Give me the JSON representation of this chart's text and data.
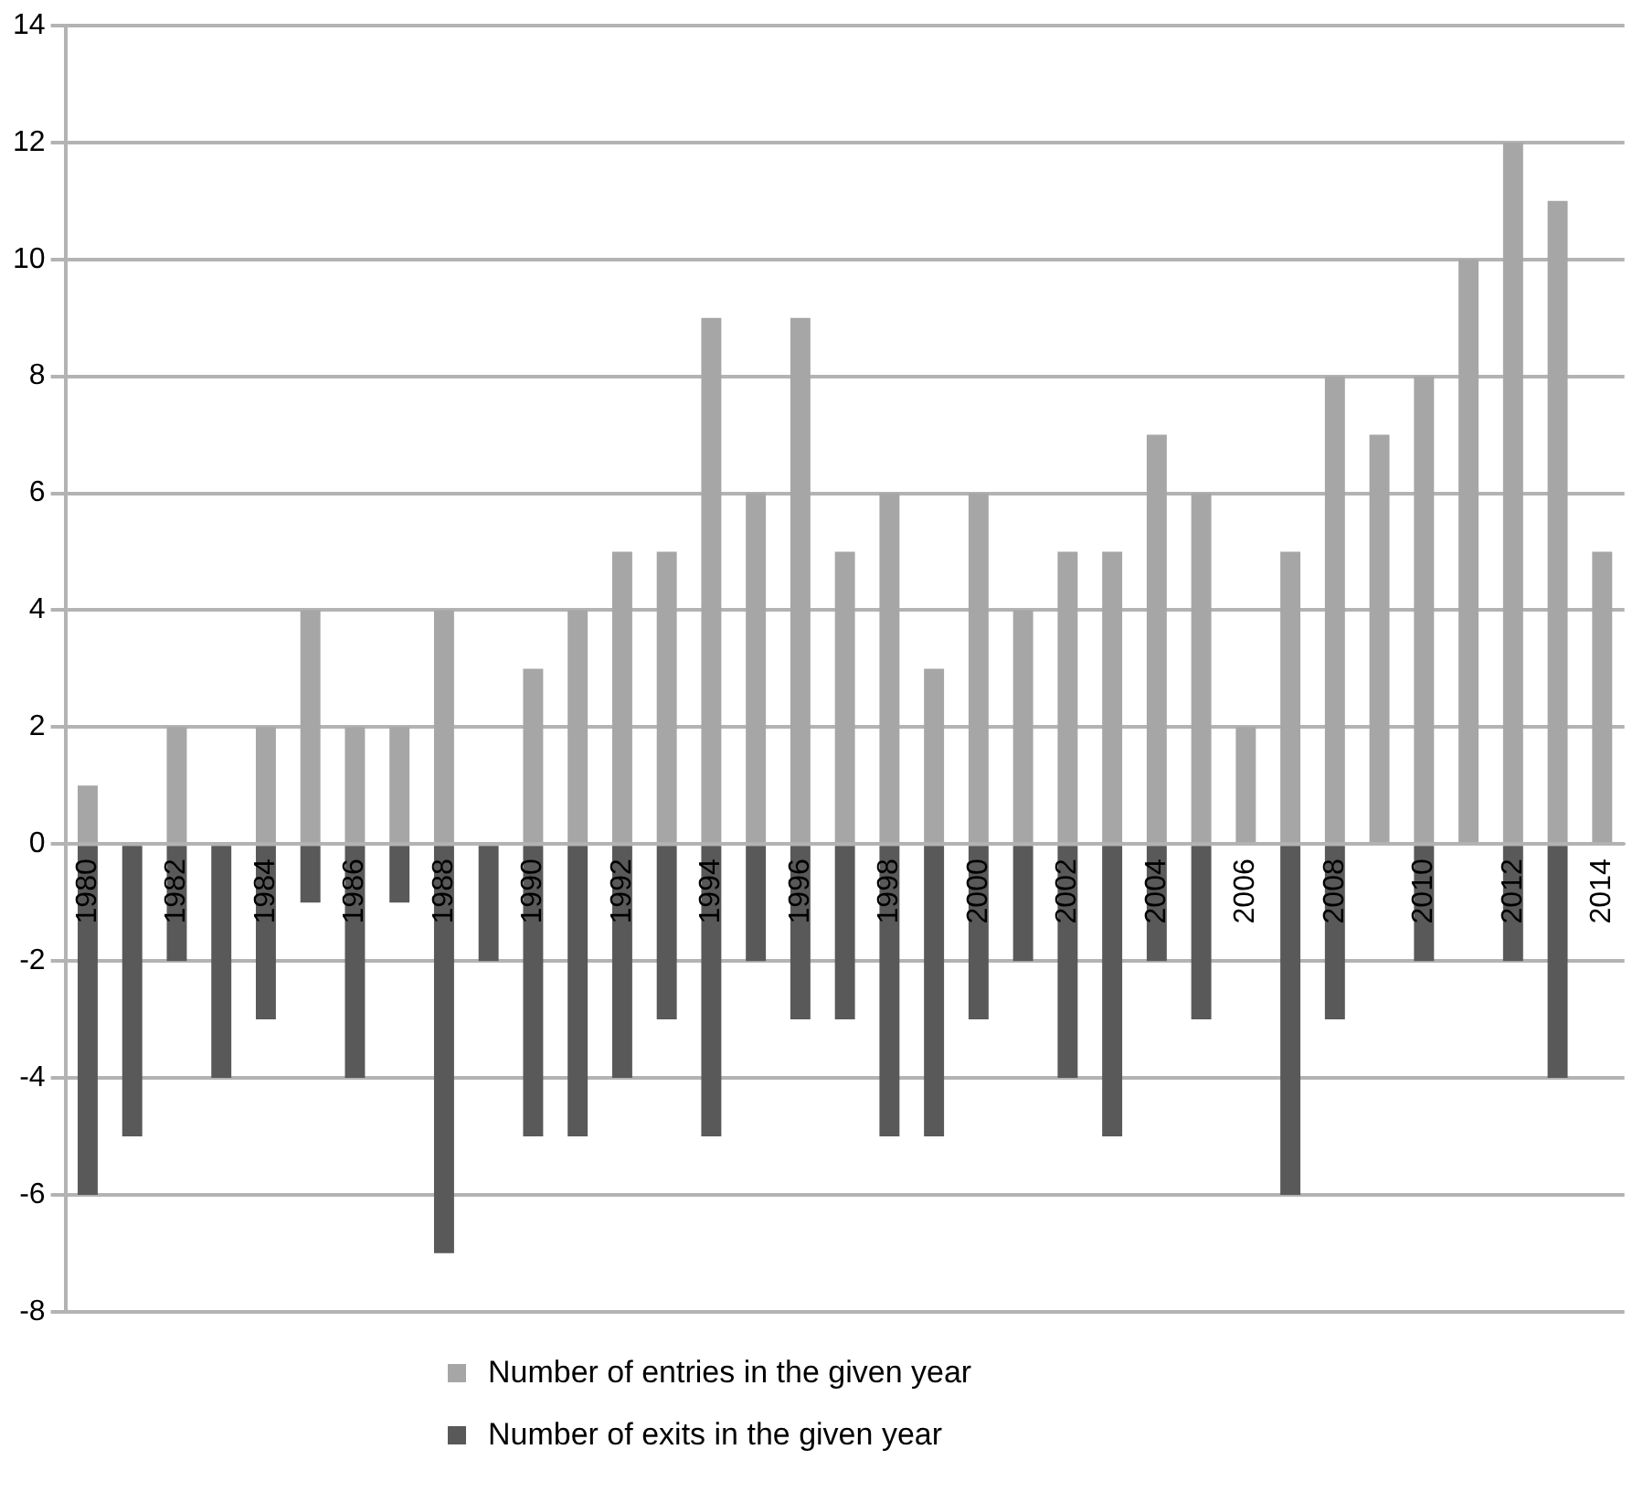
{
  "chart_data": {
    "type": "bar",
    "categories": [
      "1980",
      null,
      "1982",
      null,
      "1984",
      null,
      "1986",
      null,
      "1988",
      null,
      "1990",
      null,
      "1992",
      null,
      "1994",
      null,
      "1996",
      null,
      "1998",
      null,
      "2000",
      null,
      "2002",
      null,
      "2004",
      null,
      "2006",
      null,
      "2008",
      null,
      "2010",
      null,
      "2012",
      null,
      "2014"
    ],
    "series": [
      {
        "name": "Number of entries in the given year",
        "color": "#a6a6a6",
        "values": [
          1,
          0,
          2,
          0,
          2,
          4,
          2,
          2,
          4,
          0,
          3,
          4,
          5,
          5,
          9,
          6,
          9,
          5,
          6,
          3,
          6,
          4,
          5,
          5,
          7,
          6,
          2,
          5,
          8,
          7,
          8,
          10,
          12,
          11,
          5
        ]
      },
      {
        "name": "Number of exits in the given year",
        "color": "#595959",
        "values": [
          -6,
          -5,
          -2,
          -4,
          -3,
          -1,
          -4,
          -1,
          -7,
          -2,
          -5,
          -5,
          -4,
          -3,
          -5,
          -2,
          -3,
          -3,
          -5,
          -5,
          -3,
          -2,
          -4,
          -5,
          -2,
          -3,
          0,
          -6,
          -3,
          0,
          -2,
          0,
          -2,
          -4,
          0
        ]
      }
    ],
    "ylim": [
      -8,
      14
    ],
    "yticks": [
      -8,
      -6,
      -4,
      -2,
      0,
      2,
      4,
      6,
      8,
      10,
      12,
      14
    ],
    "stacked": true,
    "grid": "y",
    "legend": "bottom"
  }
}
